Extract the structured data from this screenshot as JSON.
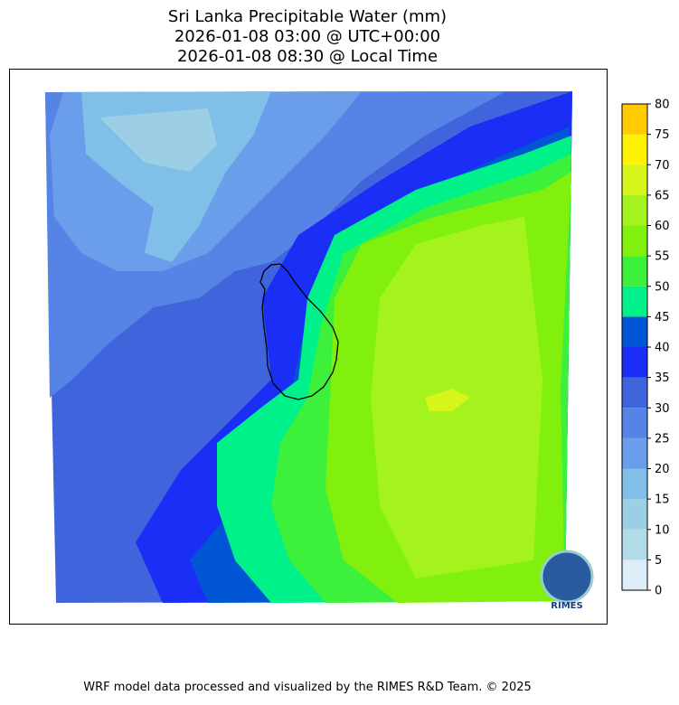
{
  "header": {
    "title_lines": [
      "Sri Lanka Precipitable Water (mm)",
      "2026-01-08 03:00 @ UTC+00:00",
      "2026-01-08 08:30 @ Local Time"
    ]
  },
  "colorbar": {
    "ticks": [
      0,
      5,
      10,
      15,
      20,
      25,
      30,
      35,
      40,
      45,
      50,
      55,
      60,
      65,
      70,
      75,
      80
    ],
    "colors": [
      "#ddeef8",
      "#b2dbe8",
      "#9ccfe6",
      "#7fbfe8",
      "#6a9eea",
      "#5584e6",
      "#3f64dc",
      "#1a2ef5",
      "#0056d4",
      "#00f08a",
      "#3cf03c",
      "#80f00c",
      "#a4f21e",
      "#d6f51a",
      "#fff200",
      "#ffca00"
    ]
  },
  "logo": {
    "text": "RIMES"
  },
  "footer": {
    "text": "WRF model data processed and visualized by the RIMES R&D Team. © 2025"
  }
}
